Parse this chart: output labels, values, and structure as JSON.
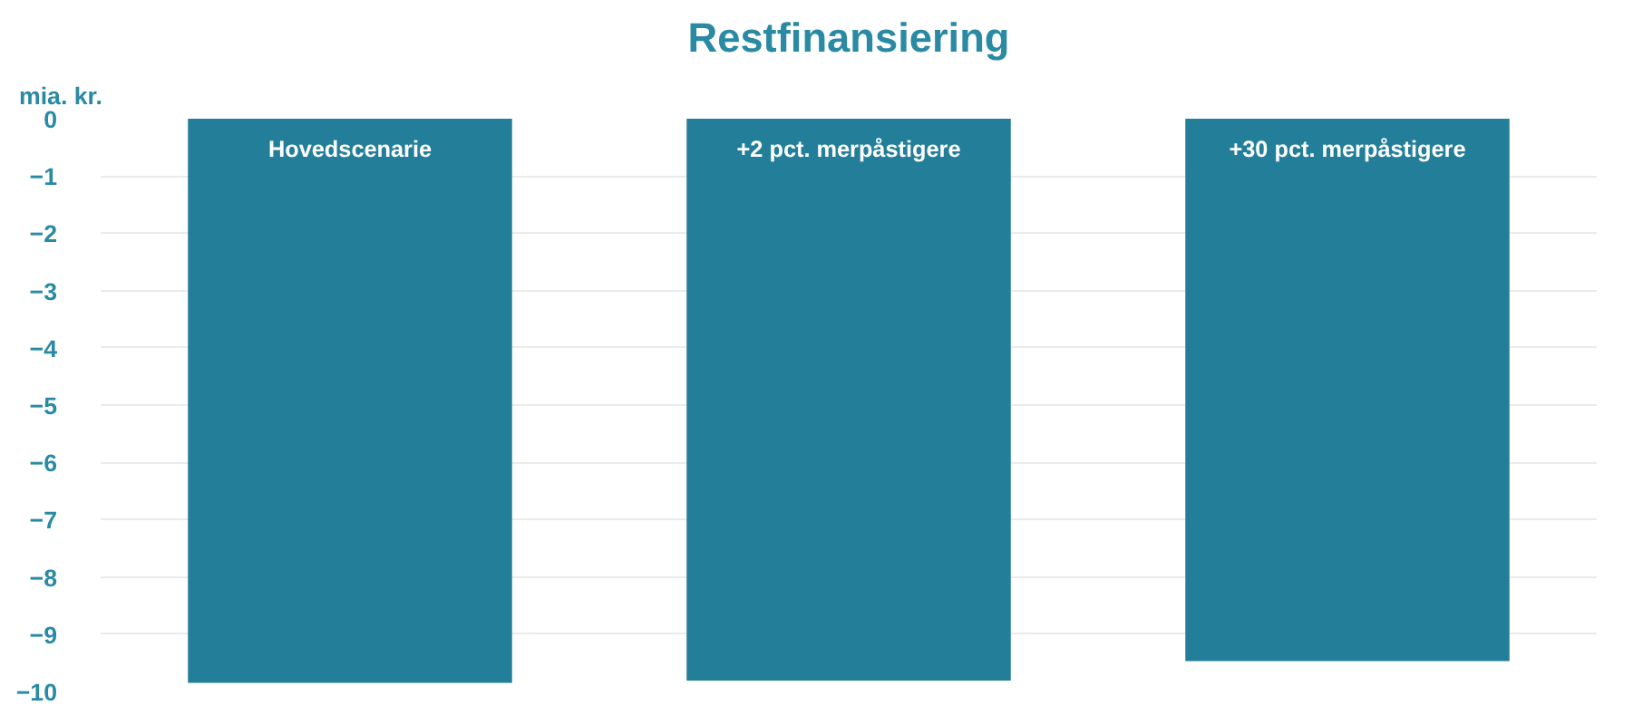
{
  "chart_data": {
    "type": "bar",
    "title": "Restfinansiering",
    "ylabel": "mia. kr.",
    "categories": [
      "Hovedscenarie",
      "+2 pct. merpåstigere",
      "+30 pct. merpåstigere"
    ],
    "values": [
      -9.85,
      -9.81,
      -9.47
    ],
    "color": "#237f99",
    "ylim": [
      -10,
      0
    ],
    "yticks": [
      0,
      -1,
      -2,
      -3,
      -4,
      -5,
      -6,
      -7,
      -8,
      -9,
      -10
    ],
    "grid": "y"
  }
}
